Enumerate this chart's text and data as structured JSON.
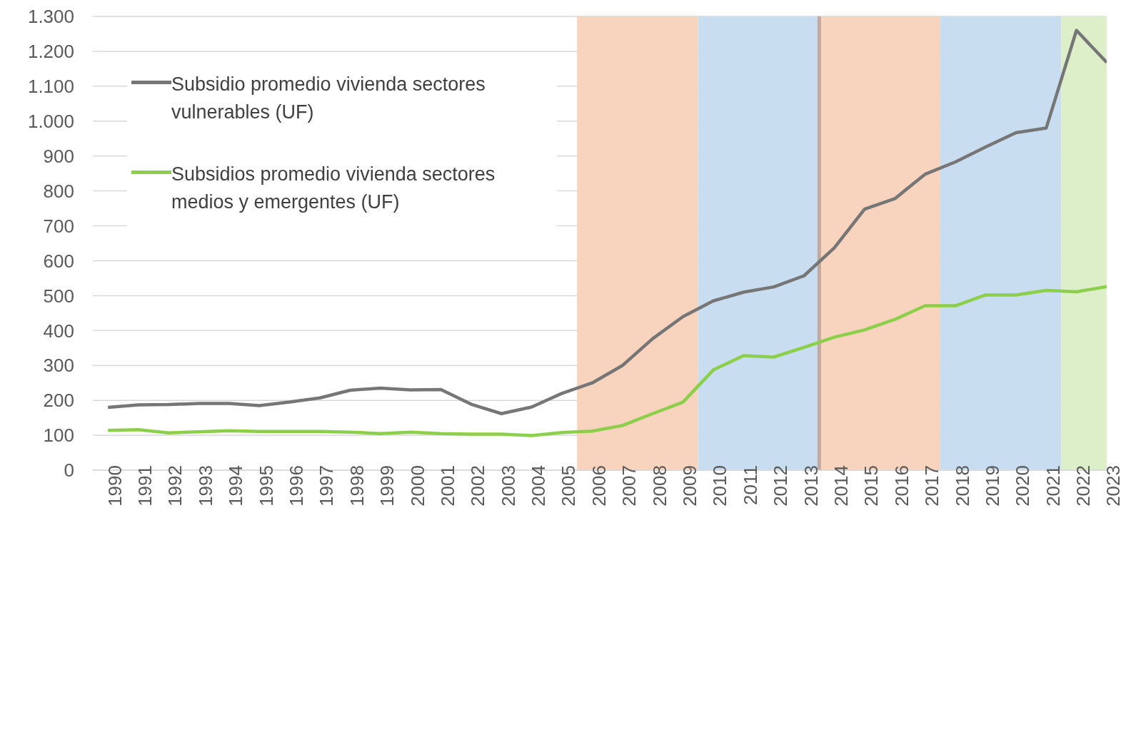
{
  "chart_data": {
    "type": "line",
    "x": [
      1990,
      1991,
      1992,
      1993,
      1994,
      1995,
      1996,
      1997,
      1998,
      1999,
      2000,
      2001,
      2002,
      2003,
      2004,
      2005,
      2006,
      2007,
      2008,
      2009,
      2010,
      2011,
      2012,
      2013,
      2014,
      2015,
      2016,
      2017,
      2018,
      2019,
      2020,
      2021,
      2022,
      2023
    ],
    "series": [
      {
        "name": "Subsidio promedio vivienda sectores vulnerables (UF)",
        "color": "#767676",
        "values": [
          180,
          187,
          188,
          191,
          191,
          185,
          195,
          207,
          229,
          235,
          230,
          231,
          189,
          162,
          181,
          220,
          250,
          300,
          377,
          440,
          485,
          510,
          525,
          557,
          637,
          748,
          778,
          848,
          883,
          926,
          967,
          980,
          1260,
          1168
        ]
      },
      {
        "name": "Subsidios promedio vivienda sectores medios y emergentes (UF)",
        "color": "#8ccf4a",
        "values": [
          114,
          116,
          107,
          110,
          113,
          111,
          111,
          111,
          109,
          105,
          109,
          105,
          103,
          103,
          99,
          108,
          112,
          128,
          162,
          195,
          287,
          328,
          324,
          352,
          381,
          402,
          432,
          471,
          471,
          502,
          502,
          515,
          511,
          526
        ]
      }
    ],
    "xlim": [
      1989.5,
      2023
    ],
    "xticks": [
      1990,
      1991,
      1992,
      1993,
      1994,
      1995,
      1996,
      1997,
      1998,
      1999,
      2000,
      2001,
      2002,
      2003,
      2004,
      2005,
      2006,
      2007,
      2008,
      2009,
      2010,
      2011,
      2012,
      2013,
      2014,
      2015,
      2016,
      2017,
      2018,
      2019,
      2020,
      2021,
      2022,
      2023
    ],
    "ylim": [
      0,
      1300
    ],
    "yticks": [
      0,
      100,
      200,
      300,
      400,
      500,
      600,
      700,
      800,
      900,
      {
        "value": 1000,
        "label": "1.000"
      },
      {
        "value": 1100,
        "label": "1.100"
      },
      {
        "value": 1200,
        "label": "1.200"
      },
      {
        "value": 1300,
        "label": "1.300"
      }
    ],
    "bands": [
      {
        "axis": "x",
        "from": 2005.5,
        "to": 2009.5,
        "color": "#f8d3bd"
      },
      {
        "axis": "x",
        "from": 2009.5,
        "to": 2013.5,
        "color": "#c9ddf1"
      },
      {
        "axis": "x",
        "from": 2013.5,
        "to": 2017.5,
        "color": "#f8d3bd"
      },
      {
        "axis": "x",
        "from": 2017.5,
        "to": 2021.5,
        "color": "#c9ddf1"
      },
      {
        "axis": "x",
        "from": 2021.5,
        "to": 2023,
        "color": "#dcefc8"
      }
    ],
    "ref_lines": [
      {
        "axis": "x",
        "value": 2013.5,
        "color": "#bfa9a0"
      }
    ],
    "grid": "y",
    "legend": "top left",
    "marker": "none",
    "line_style": "solid"
  }
}
